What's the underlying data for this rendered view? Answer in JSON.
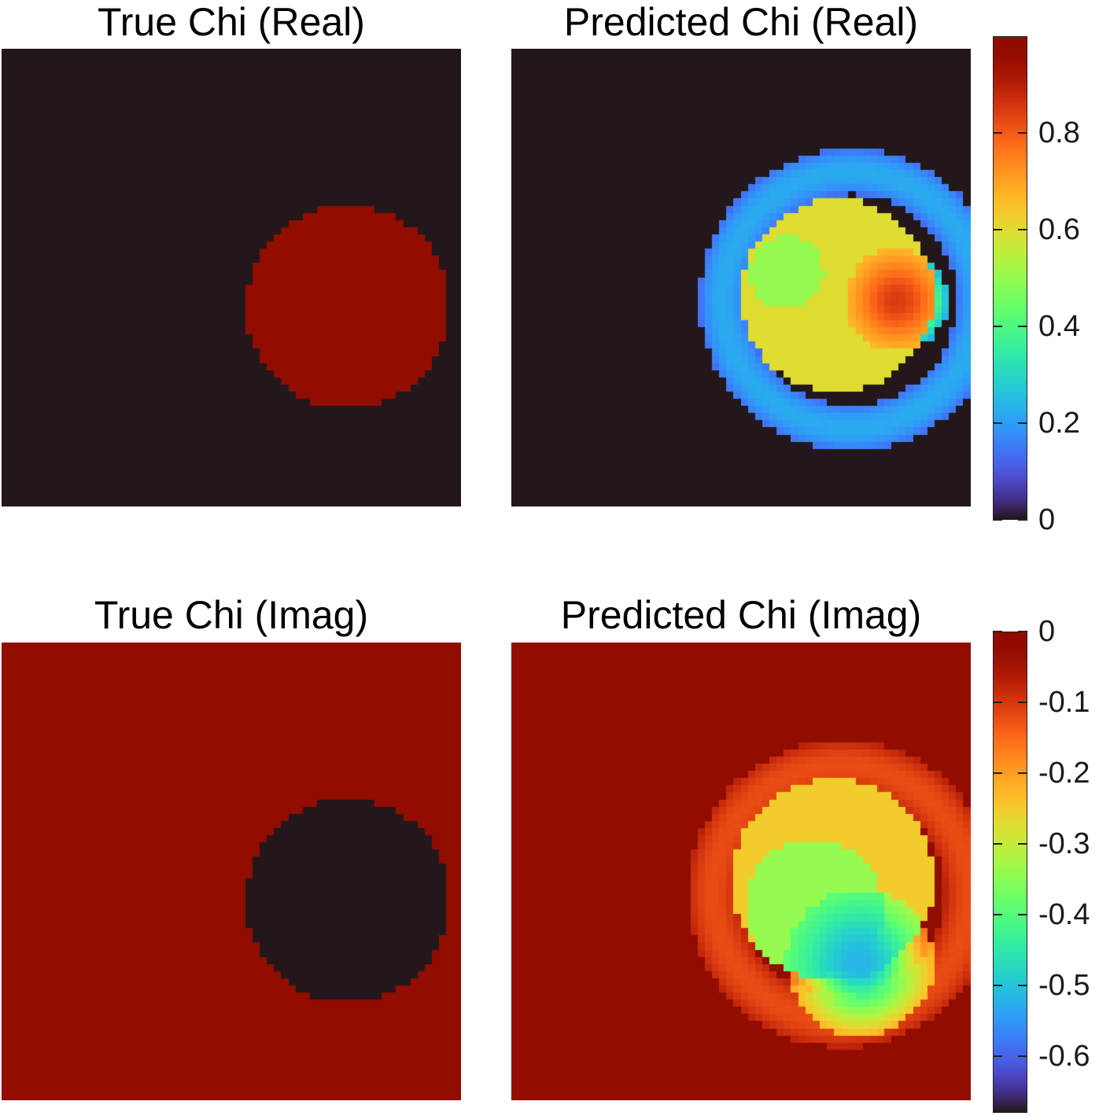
{
  "chart_data": [
    {
      "type": "heatmap",
      "title": "True Chi (Real)",
      "grid_size": 64,
      "colormap": "turbo",
      "value_range": [
        0,
        1
      ],
      "background_value": 0,
      "shapes": [
        {
          "kind": "disk",
          "cx": 0.754,
          "cy": 0.565,
          "r": 0.222,
          "value": 1.0
        }
      ]
    },
    {
      "type": "heatmap",
      "title": "Predicted Chi (Real)",
      "grid_size": 64,
      "colormap": "turbo",
      "value_range": [
        0,
        1
      ],
      "background_value": 0,
      "shapes": [
        {
          "kind": "ring",
          "cx": 0.74,
          "cy": 0.55,
          "r": 0.28,
          "width": 0.1,
          "value": 0.22
        },
        {
          "kind": "disk",
          "cx": 0.71,
          "cy": 0.54,
          "r": 0.21,
          "value": 0.6
        },
        {
          "kind": "disk",
          "cx": 0.6,
          "cy": 0.49,
          "r": 0.08,
          "value": 0.5
        },
        {
          "kind": "blob",
          "cx": 0.84,
          "cy": 0.55,
          "r": 0.07,
          "value": 0.85
        }
      ]
    },
    {
      "type": "heatmap",
      "title": "True Chi (Imag)",
      "grid_size": 64,
      "colormap": "turbo",
      "value_range": [
        -0.68,
        0
      ],
      "background_value": 0,
      "shapes": [
        {
          "kind": "disk",
          "cx": 0.754,
          "cy": 0.565,
          "r": 0.222,
          "value": -0.68
        }
      ]
    },
    {
      "type": "heatmap",
      "title": "Predicted Chi (Imag)",
      "grid_size": 64,
      "colormap": "turbo",
      "value_range": [
        -0.68,
        0
      ],
      "background_value": 0,
      "shapes": [
        {
          "kind": "ring",
          "cx": 0.72,
          "cy": 0.55,
          "r": 0.28,
          "width": 0.11,
          "value": -0.12
        },
        {
          "kind": "disk",
          "cx": 0.7,
          "cy": 0.52,
          "r": 0.22,
          "value": -0.25
        },
        {
          "kind": "disk",
          "cx": 0.66,
          "cy": 0.58,
          "r": 0.15,
          "value": -0.34
        },
        {
          "kind": "blob",
          "cx": 0.76,
          "cy": 0.7,
          "r": 0.1,
          "value": -0.52
        }
      ]
    }
  ],
  "colorbars": [
    {
      "range": [
        0,
        1
      ],
      "ticks": [
        0,
        0.2,
        0.4,
        0.6,
        0.8
      ],
      "tick_labels": [
        "0",
        "0.2",
        "0.4",
        "0.6",
        "0.8"
      ]
    },
    {
      "range": [
        -0.68,
        0
      ],
      "ticks": [
        0,
        -0.1,
        -0.2,
        -0.3,
        -0.4,
        -0.5,
        -0.6
      ],
      "tick_labels": [
        "0",
        "-0.1",
        "-0.2",
        "-0.3",
        "-0.4",
        "-0.5",
        "-0.6"
      ]
    }
  ]
}
